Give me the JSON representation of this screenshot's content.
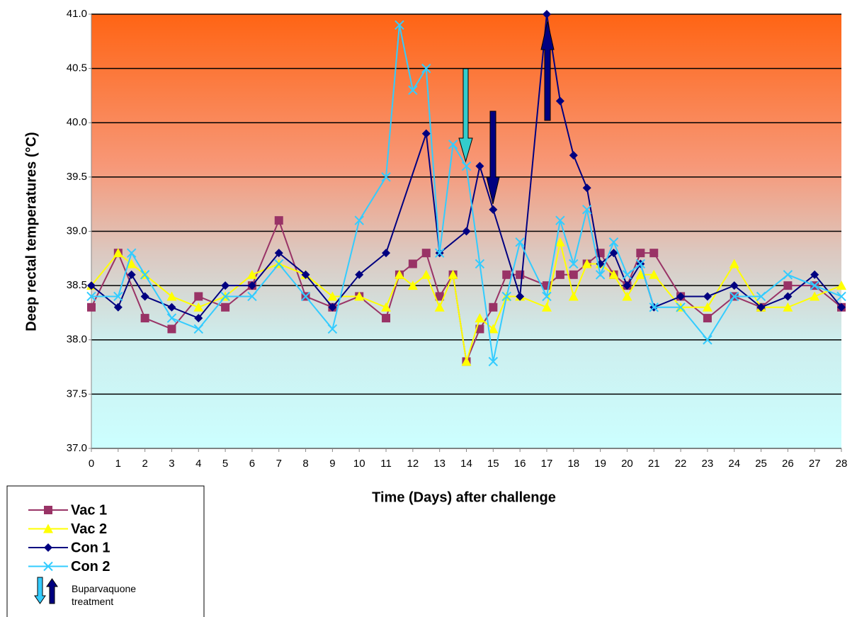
{
  "chart_data": {
    "type": "line",
    "y_label": "Deep rectal temperatures (°C)",
    "x_label": "Time (Days) after challenge",
    "xlim": [
      0,
      28
    ],
    "xticks": [
      0,
      1,
      2,
      3,
      4,
      5,
      6,
      7,
      8,
      9,
      10,
      11,
      12,
      13,
      14,
      15,
      16,
      17,
      18,
      19,
      20,
      21,
      22,
      23,
      24,
      25,
      26,
      27,
      28
    ],
    "ylim": [
      37,
      41
    ],
    "yticks": [
      {
        "value": 37,
        "label": "37.0"
      },
      37.5,
      {
        "value": 38,
        "label": "38.0"
      },
      38.5,
      {
        "value": 39,
        "label": "39.0"
      },
      39.5,
      {
        "value": 40,
        "label": "40.0"
      },
      40.5,
      {
        "value": 41,
        "label": "41.0"
      }
    ],
    "grid": true,
    "legend_note": "Buparvaquone treatment",
    "series": [
      {
        "name": "Vac 1",
        "color": "#993366",
        "marker": "square",
        "x": [
          0,
          1,
          2,
          3,
          4,
          5,
          6,
          7,
          8,
          9,
          10,
          11,
          11.5,
          12,
          12.5,
          13,
          13.5,
          14,
          14.5,
          15,
          15.5,
          16,
          17,
          17.5,
          18,
          18.5,
          19,
          19.5,
          20,
          20.5,
          21,
          22,
          23,
          24,
          25,
          26,
          27,
          28
        ],
        "values": [
          38.3,
          38.8,
          38.2,
          38.1,
          38.4,
          38.3,
          38.5,
          39.1,
          38.4,
          38.3,
          38.4,
          38.2,
          38.6,
          38.7,
          38.8,
          38.4,
          38.6,
          37.8,
          38.1,
          38.3,
          38.6,
          38.6,
          38.5,
          38.6,
          38.6,
          38.7,
          38.8,
          38.6,
          38.5,
          38.8,
          38.8,
          38.4,
          38.2,
          38.4,
          38.3,
          38.5,
          38.5,
          38.3
        ]
      },
      {
        "name": "Vac 2",
        "color": "#ffff00",
        "marker": "triangle",
        "x": [
          0,
          1,
          1.5,
          2,
          3,
          4,
          5,
          6,
          7,
          8,
          9,
          10,
          11,
          11.5,
          12,
          12.5,
          13,
          13.5,
          14,
          14.5,
          15,
          15.5,
          16,
          17,
          17.5,
          18,
          18.5,
          19,
          19.5,
          20,
          20.5,
          21,
          22,
          23,
          24,
          25,
          26,
          27,
          28
        ],
        "values": [
          38.5,
          38.8,
          38.7,
          38.6,
          38.4,
          38.3,
          38.4,
          38.6,
          38.7,
          38.6,
          38.4,
          38.4,
          38.3,
          38.6,
          38.5,
          38.6,
          38.3,
          38.6,
          37.8,
          38.2,
          38.1,
          38.4,
          38.4,
          38.3,
          38.9,
          38.4,
          38.7,
          38.7,
          38.6,
          38.4,
          38.6,
          38.6,
          38.3,
          38.3,
          38.7,
          38.3,
          38.3,
          38.4,
          38.5
        ]
      },
      {
        "name": "Con 1",
        "color": "#000080",
        "marker": "diamond",
        "x": [
          0,
          1,
          1.5,
          2,
          3,
          4,
          5,
          6,
          7,
          8,
          9,
          10,
          11,
          12.5,
          13,
          14,
          14.5,
          15,
          16,
          17,
          17.5,
          18,
          18.5,
          19,
          19.5,
          20,
          20.5,
          21,
          22,
          23,
          24,
          25,
          26,
          27,
          28
        ],
        "values": [
          38.5,
          38.3,
          38.6,
          38.4,
          38.3,
          38.2,
          38.5,
          38.5,
          38.8,
          38.6,
          38.3,
          38.6,
          38.8,
          39.9,
          38.8,
          39.0,
          39.6,
          39.2,
          38.4,
          41.0,
          40.2,
          39.7,
          39.4,
          38.7,
          38.8,
          38.5,
          38.7,
          38.3,
          38.4,
          38.4,
          38.5,
          38.3,
          38.4,
          38.6,
          38.3
        ]
      },
      {
        "name": "Con 2",
        "color": "#33ccff",
        "marker": "x",
        "x": [
          0,
          1,
          1.5,
          2,
          3,
          4,
          5,
          6,
          7,
          8,
          9,
          10,
          11,
          11.5,
          12,
          12.5,
          13,
          13.5,
          14,
          14.5,
          15,
          15.5,
          16,
          17,
          17.5,
          18,
          18.5,
          19,
          19.5,
          20,
          20.5,
          21,
          22,
          23,
          24,
          25,
          26,
          27,
          28
        ],
        "values": [
          38.4,
          38.4,
          38.8,
          38.6,
          38.2,
          38.1,
          38.4,
          38.4,
          38.7,
          38.4,
          38.1,
          39.1,
          39.5,
          40.9,
          40.3,
          40.5,
          38.8,
          39.8,
          39.6,
          38.7,
          37.8,
          38.4,
          38.9,
          38.4,
          39.1,
          38.7,
          39.2,
          38.6,
          38.9,
          38.6,
          38.7,
          38.3,
          38.3,
          38.0,
          38.4,
          38.4,
          38.6,
          38.5,
          38.4
        ]
      }
    ]
  }
}
